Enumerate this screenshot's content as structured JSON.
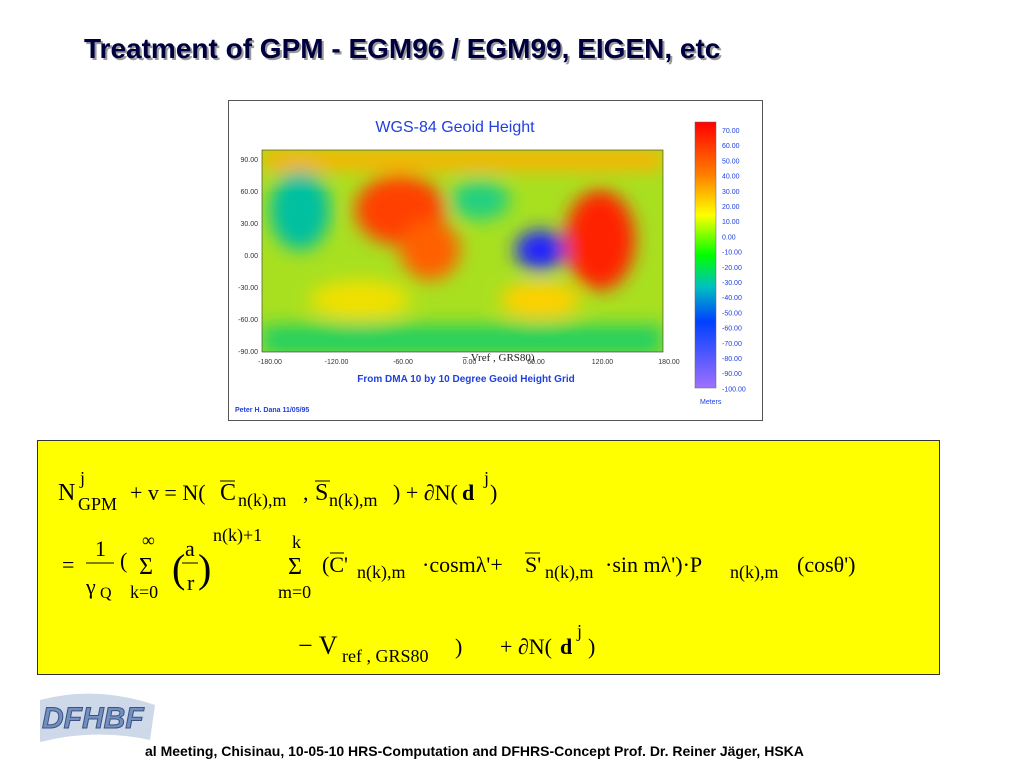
{
  "title": "Treatment of GPM   - EGM96 / EGM99, EIGEN, etc",
  "map": {
    "title": "WGS-84 Geoid Height",
    "caption": "From DMA 10 by 10 Degree Geoid Height Grid",
    "credit": "Peter H. Dana 11/05/95",
    "unit": "Meters",
    "y_labels": [
      "90.00",
      "60.00",
      "30.00",
      "0.00",
      "-30.00",
      "-60.00",
      "-90.00"
    ],
    "x_labels": [
      "-180.00",
      "-120.00",
      "-60.00",
      "0.00",
      "60.00",
      "120.00",
      "180.00"
    ],
    "scale_labels": [
      "70.00",
      "60.00",
      "50.00",
      "40.00",
      "30.00",
      "20.00",
      "10.00",
      "0.00",
      "-10.00",
      "-20.00",
      "-30.00",
      "-40.00",
      "-50.00",
      "-60.00",
      "-70.00",
      "-80.00",
      "-90.00",
      "-100.00"
    ],
    "overlay": "− Vref , GRS80)"
  },
  "formula": {
    "line1": [
      "N",
      "j",
      "GPM",
      "+ v = N(",
      "C",
      "n(k),m",
      ",",
      "S",
      "n(k),m",
      ") + ∂N(",
      "d",
      "j",
      ")"
    ],
    "line2": [
      "=",
      "1",
      "γ",
      "Q",
      "(",
      "∞",
      "Σ",
      "k=0",
      "(",
      "a",
      "r",
      ")",
      "n(k)+1",
      "k",
      "Σ",
      "m=0",
      "(C'",
      "n(k),m",
      "·cosmλ'+",
      "S'",
      "n(k),m",
      "·sin mλ')·P",
      "n(k),m",
      "(cosθ')"
    ],
    "line3": [
      "− V",
      "ref , GRS80",
      ")",
      "+ ∂N(",
      "d",
      "j",
      ")"
    ]
  },
  "footer": "al Meeting, Chisinau, 10-05-10   HRS-Computation and DFHRS-Concept     Prof. Dr. Reiner Jäger, HSKA",
  "logo": "DFHBF"
}
